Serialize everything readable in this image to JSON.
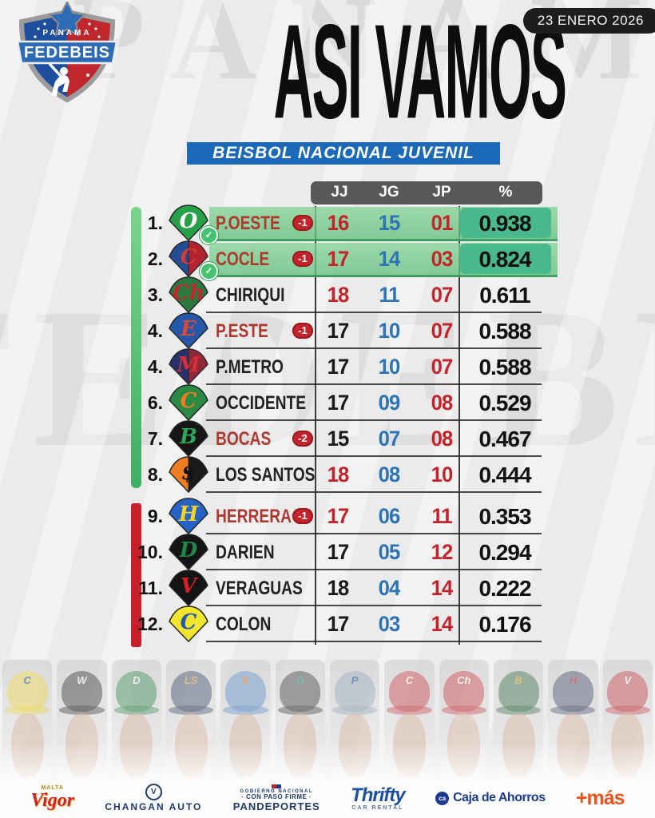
{
  "date_badge": "23 ENERO 2026",
  "logo": {
    "country": "PANAMA",
    "org": "FEDEBEIS"
  },
  "watermarks": {
    "top": "PANAMA",
    "middle": "FEDEBEIS"
  },
  "title": "ASI VAMOS",
  "subtitle": "BEISBOL NACIONAL JUVENIL",
  "icons": {
    "check": "✓"
  },
  "colors": {
    "banner_blue": "#1b69b7",
    "zone_green": "#4fbf6d",
    "zone_red": "#c8202a",
    "num_red": "#c3242b",
    "num_blue": "#2e74b5",
    "row_highlight_green": "#7ed091",
    "pct_box_green": "#49b88c",
    "date_badge_bg": "#1d1d1d",
    "header_bar_bg": "#58585a"
  },
  "table": {
    "headers": [
      "JJ",
      "JG",
      "JP",
      "%"
    ],
    "rows": [
      {
        "rank": "1.",
        "team": "P.OESTE",
        "badge": "-1",
        "jj": "16",
        "jg": "15",
        "jp": "01",
        "pct": "0.938",
        "jj_color": "red",
        "name_color": "red",
        "highlight": true,
        "check": true,
        "logo": {
          "bg": "#27a04a",
          "bg2": "",
          "letter": "O",
          "letter_color": "#ffffff"
        }
      },
      {
        "rank": "2.",
        "team": "COCLE",
        "badge": "-1",
        "jj": "17",
        "jg": "14",
        "jp": "03",
        "pct": "0.824",
        "jj_color": "red",
        "name_color": "red",
        "highlight": true,
        "check": true,
        "logo": {
          "bg": "#234f92",
          "bg2": "#b22330",
          "letter": "C",
          "letter_color": "#d03a3a"
        }
      },
      {
        "rank": "3.",
        "team": "CHIRIQUI",
        "badge": "",
        "jj": "18",
        "jg": "11",
        "jp": "07",
        "pct": "0.611",
        "jj_color": "red",
        "name_color": "black",
        "highlight": false,
        "check": false,
        "logo": {
          "bg": "#2a7a3f",
          "bg2": "",
          "letter": "Ch",
          "letter_color": "#c0272d"
        }
      },
      {
        "rank": "4.",
        "team": "P.ESTE",
        "badge": "-1",
        "jj": "17",
        "jg": "10",
        "jp": "07",
        "pct": "0.588",
        "jj_color": "black",
        "name_color": "red",
        "highlight": false,
        "check": false,
        "logo": {
          "bg": "#2457a8",
          "bg2": "",
          "letter": "E",
          "letter_color": "#e04838"
        }
      },
      {
        "rank": "4.",
        "team": "P.METRO",
        "badge": "",
        "jj": "17",
        "jg": "10",
        "jp": "07",
        "pct": "0.588",
        "jj_color": "black",
        "name_color": "black",
        "highlight": false,
        "check": false,
        "logo": {
          "bg": "#26316e",
          "bg2": "#8f2838",
          "letter": "M",
          "letter_color": "#d42f33"
        }
      },
      {
        "rank": "6.",
        "team": "OCCIDENTE",
        "badge": "",
        "jj": "17",
        "jg": "09",
        "jp": "08",
        "pct": "0.529",
        "jj_color": "black",
        "name_color": "black",
        "highlight": false,
        "check": false,
        "logo": {
          "bg": "#2a8a43",
          "bg2": "",
          "letter": "C",
          "letter_color": "#ef7d23"
        }
      },
      {
        "rank": "7.",
        "team": "BOCAS",
        "badge": "-2",
        "jj": "15",
        "jg": "07",
        "jp": "08",
        "pct": "0.467",
        "jj_color": "black",
        "name_color": "red",
        "highlight": false,
        "check": false,
        "logo": {
          "bg": "#161616",
          "bg2": "",
          "letter": "B",
          "letter_color": "#2fa558"
        }
      },
      {
        "rank": "8.",
        "team": "LOS SANTOS",
        "badge": "",
        "jj": "18",
        "jg": "08",
        "jp": "10",
        "pct": "0.444",
        "jj_color": "red",
        "name_color": "black",
        "highlight": false,
        "check": false,
        "logo": {
          "bg": "#ef7d23",
          "bg2": "#1a1a1a",
          "letter": "$",
          "letter_color": "#141414"
        }
      },
      {
        "rank": "9.",
        "team": "HERRERA",
        "badge": "-1",
        "jj": "17",
        "jg": "06",
        "jp": "11",
        "pct": "0.353",
        "jj_color": "red",
        "name_color": "red",
        "highlight": false,
        "check": false,
        "logo": {
          "bg": "#2563c4",
          "bg2": "",
          "letter": "H",
          "letter_color": "#f4d428"
        }
      },
      {
        "rank": "10.",
        "team": "DARIEN",
        "badge": "",
        "jj": "17",
        "jg": "05",
        "jp": "12",
        "pct": "0.294",
        "jj_color": "black",
        "name_color": "black",
        "highlight": false,
        "check": false,
        "logo": {
          "bg": "#141414",
          "bg2": "",
          "letter": "D",
          "letter_color": "#1f8a4c"
        }
      },
      {
        "rank": "11.",
        "team": "VERAGUAS",
        "badge": "",
        "jj": "18",
        "jg": "04",
        "jp": "14",
        "pct": "0.222",
        "jj_color": "black",
        "name_color": "black",
        "highlight": false,
        "check": false,
        "logo": {
          "bg": "#141414",
          "bg2": "",
          "letter": "V",
          "letter_color": "#d42027"
        }
      },
      {
        "rank": "12.",
        "team": "COLON",
        "badge": "",
        "jj": "17",
        "jg": "03",
        "jp": "14",
        "pct": "0.176",
        "jj_color": "black",
        "name_color": "black",
        "highlight": false,
        "check": false,
        "logo": {
          "bg": "#f2e530",
          "bg2": "",
          "letter": "C",
          "letter_color": "#2457a8"
        }
      }
    ]
  },
  "photo_strip": {
    "players": [
      {
        "cap_color": "#e8cf2e",
        "cap_letter": "C",
        "letter_color": "#1d4f9e"
      },
      {
        "cap_color": "#1a1a1a",
        "cap_letter": "W",
        "letter_color": "#ffffff"
      },
      {
        "cap_color": "#1f7a3c",
        "cap_letter": "D",
        "letter_color": "#ffffff"
      },
      {
        "cap_color": "#20304f",
        "cap_letter": "LS",
        "letter_color": "#e8a04a"
      },
      {
        "cap_color": "#4a7fc1",
        "cap_letter": "E",
        "letter_color": "#ef7d23"
      },
      {
        "cap_color": "#222222",
        "cap_letter": "D",
        "letter_color": "#2e9e8f"
      },
      {
        "cap_color": "#8a9bb0",
        "cap_letter": "P",
        "letter_color": "#1d4f9e"
      },
      {
        "cap_color": "#c0272d",
        "cap_letter": "C",
        "letter_color": "#ffffff"
      },
      {
        "cap_color": "#c0272d",
        "cap_letter": "Ch",
        "letter_color": "#ffffff"
      },
      {
        "cap_color": "#1f5c35",
        "cap_letter": "B",
        "letter_color": "#d4af37"
      },
      {
        "cap_color": "#27304f",
        "cap_letter": "H",
        "letter_color": "#c0272d"
      },
      {
        "cap_color": "#c0272d",
        "cap_letter": "V",
        "letter_color": "#ffffff"
      }
    ]
  },
  "sponsors": {
    "vigor": {
      "top": "MALTA",
      "name": "Vigor"
    },
    "changan": {
      "glyph": "V",
      "name": "CHANGAN AUTO"
    },
    "pandeportes": {
      "line1": "GOBIERNO NACIONAL",
      "line2": "· CON PASO FIRME ·",
      "line3": "PANDEPORTES"
    },
    "thrifty": {
      "name": "Thrifty",
      "sub": "CAR RENTAL"
    },
    "caja": {
      "glyph": "ca",
      "name": "Caja de Ahorros"
    },
    "mas": {
      "name": "+más"
    }
  }
}
